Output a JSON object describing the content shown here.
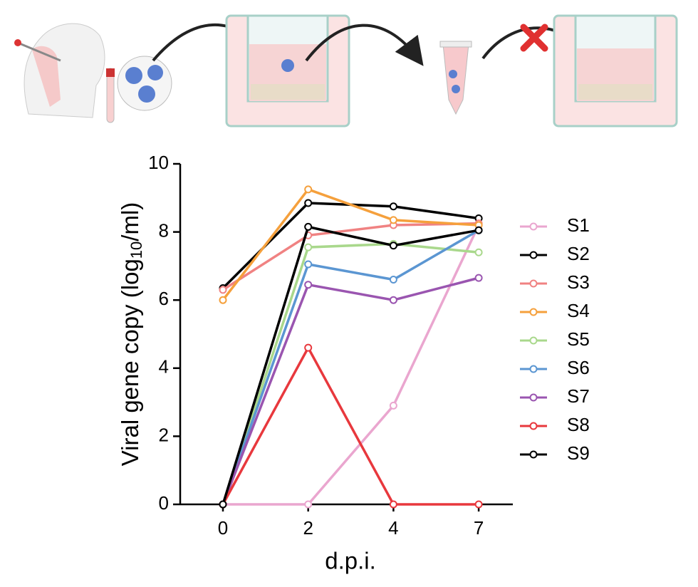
{
  "chart_data": {
    "type": "line",
    "y_label": [
      "Viral gene copy (log",
      "10",
      "/ml)"
    ],
    "x_label": "d.p.i.",
    "categories": [
      "0",
      "2",
      "4",
      "7"
    ],
    "ylim": [
      0,
      10
    ],
    "yticks": [
      0,
      2,
      4,
      6,
      8,
      10
    ],
    "series": [
      {
        "name": "S1",
        "color": "#eaa6cf",
        "values": [
          0,
          0,
          2.9,
          8.2
        ]
      },
      {
        "name": "S2",
        "color": "#000000",
        "values": [
          6.35,
          8.85,
          8.75,
          8.4
        ]
      },
      {
        "name": "S3",
        "color": "#f08282",
        "values": [
          6.3,
          7.9,
          8.2,
          8.25
        ]
      },
      {
        "name": "S4",
        "color": "#f5a03c",
        "values": [
          6.0,
          9.25,
          8.35,
          8.2
        ]
      },
      {
        "name": "S5",
        "color": "#a9d88c",
        "values": [
          0,
          7.55,
          7.65,
          7.4
        ]
      },
      {
        "name": "S6",
        "color": "#5b96d2",
        "values": [
          0,
          7.05,
          6.6,
          8.05
        ]
      },
      {
        "name": "S7",
        "color": "#9a55b0",
        "values": [
          0,
          6.45,
          6.0,
          6.65
        ]
      },
      {
        "name": "S8",
        "color": "#e8383d",
        "values": [
          0,
          4.6,
          0,
          0
        ]
      },
      {
        "name": "S9",
        "color": "#000000",
        "values": [
          0,
          8.15,
          7.6,
          8.05
        ]
      }
    ]
  }
}
